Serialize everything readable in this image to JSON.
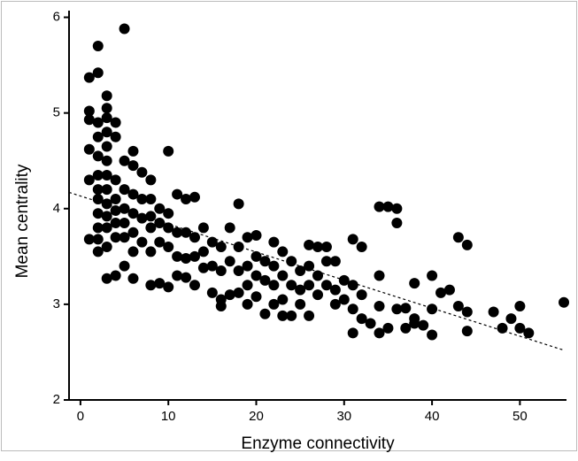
{
  "chart_data": {
    "type": "scatter",
    "xlabel": "Enzyme connectivity",
    "ylabel": "Mean centrality",
    "color": "#000000",
    "xlim": [
      -1.3,
      55.3
    ],
    "ylim": [
      2,
      6.07
    ],
    "xticks": [
      0,
      10,
      20,
      30,
      40,
      50
    ],
    "yticks": [
      2,
      3,
      4,
      5,
      6
    ],
    "grid": false,
    "trendline": {
      "x": [
        -1.3,
        55
      ],
      "values": [
        4.17,
        2.52
      ]
    },
    "x": [
      1,
      1,
      1,
      1,
      1,
      1,
      2,
      2,
      2,
      2,
      2,
      2,
      2,
      2,
      2,
      2,
      2,
      2,
      3,
      3,
      3,
      3,
      3,
      3,
      3,
      3,
      3,
      3,
      3,
      3,
      3,
      4,
      4,
      4,
      4,
      4,
      4,
      4,
      4,
      5,
      5,
      5,
      5,
      5,
      5,
      5,
      6,
      6,
      6,
      6,
      6,
      6,
      6,
      7,
      7,
      7,
      7,
      8,
      8,
      8,
      8,
      8,
      8,
      9,
      9,
      9,
      9,
      10,
      10,
      10,
      10,
      10,
      11,
      11,
      11,
      11,
      12,
      12,
      12,
      12,
      13,
      13,
      13,
      13,
      14,
      14,
      14,
      15,
      15,
      15,
      16,
      16,
      16,
      16,
      17,
      17,
      17,
      18,
      18,
      18,
      18,
      19,
      19,
      19,
      19,
      20,
      20,
      20,
      20,
      21,
      21,
      21,
      22,
      22,
      22,
      22,
      23,
      23,
      23,
      23,
      24,
      24,
      24,
      25,
      25,
      25,
      26,
      26,
      26,
      26,
      27,
      27,
      27,
      28,
      28,
      28,
      29,
      29,
      29,
      30,
      30,
      31,
      31,
      31,
      31,
      32,
      32,
      32,
      33,
      34,
      34,
      34,
      34,
      35,
      35,
      36,
      36,
      36,
      37,
      37,
      38,
      38,
      38,
      39,
      40,
      40,
      40,
      41,
      42,
      43,
      43,
      44,
      44,
      44,
      47,
      48,
      49,
      50,
      50,
      51,
      55
    ],
    "values": [
      5.37,
      5.02,
      4.93,
      4.62,
      4.3,
      3.68,
      5.7,
      5.42,
      4.9,
      4.75,
      4.55,
      4.35,
      4.2,
      4.1,
      3.95,
      3.8,
      3.68,
      3.55,
      5.18,
      5.05,
      4.95,
      4.8,
      4.65,
      4.5,
      4.35,
      4.2,
      4.05,
      3.92,
      3.8,
      3.6,
      3.27,
      4.9,
      4.75,
      4.3,
      4.1,
      3.98,
      3.85,
      3.7,
      3.3,
      5.88,
      4.5,
      4.2,
      4.0,
      3.85,
      3.7,
      3.4,
      4.6,
      4.45,
      4.15,
      3.95,
      3.75,
      3.55,
      3.27,
      4.38,
      4.1,
      3.9,
      3.65,
      4.3,
      4.1,
      3.92,
      3.8,
      3.55,
      3.2,
      4.0,
      3.85,
      3.65,
      3.22,
      4.6,
      3.95,
      3.8,
      3.6,
      3.18,
      4.15,
      3.75,
      3.5,
      3.3,
      4.1,
      3.75,
      3.48,
      3.28,
      4.12,
      3.7,
      3.5,
      3.2,
      3.8,
      3.55,
      3.38,
      3.65,
      3.4,
      3.12,
      3.6,
      3.35,
      3.05,
      2.98,
      3.8,
      3.45,
      3.1,
      4.05,
      3.6,
      3.35,
      3.12,
      3.7,
      3.4,
      3.2,
      3.0,
      3.72,
      3.5,
      3.3,
      3.08,
      3.45,
      3.25,
      2.9,
      3.65,
      3.4,
      3.2,
      3.0,
      3.55,
      3.3,
      3.05,
      2.88,
      3.45,
      3.2,
      2.88,
      3.35,
      3.15,
      3.0,
      3.62,
      3.4,
      3.2,
      2.88,
      3.6,
      3.3,
      3.1,
      3.6,
      3.45,
      3.2,
      3.45,
      3.15,
      3.0,
      3.25,
      3.05,
      3.68,
      3.2,
      2.95,
      2.7,
      3.6,
      3.1,
      2.85,
      2.8,
      4.02,
      3.3,
      2.98,
      2.7,
      4.02,
      2.75,
      4.0,
      3.85,
      2.95,
      2.96,
      2.75,
      3.22,
      2.85,
      2.8,
      2.78,
      3.3,
      2.95,
      2.68,
      3.12,
      3.15,
      3.7,
      2.98,
      3.62,
      2.92,
      2.72,
      2.92,
      2.75,
      2.85,
      2.98,
      2.75,
      2.7,
      3.02
    ]
  }
}
